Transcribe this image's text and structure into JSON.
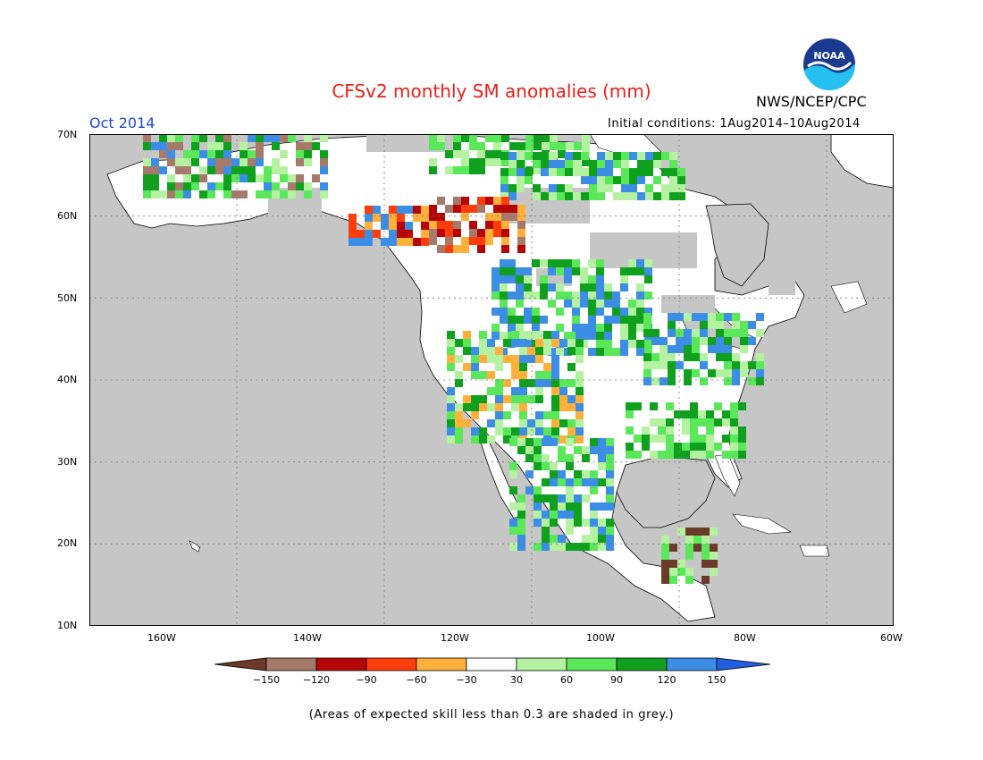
{
  "header": {
    "title": "CFSv2 monthly SM anomalies (mm)",
    "month": "Oct 2014",
    "initial_conditions": "Initial conditions: 1Aug2014–10Aug2014",
    "agency": "NWS/NCEP/CPC",
    "logo_text": "NOAA"
  },
  "map": {
    "lat_labels": [
      "70N",
      "60N",
      "50N",
      "40N",
      "30N",
      "20N",
      "10N"
    ],
    "lon_labels": [
      "160W",
      "140W",
      "120W",
      "100W",
      "80W",
      "60W"
    ],
    "colors": {
      "ocean": "#c6c6c6",
      "land": "#ffffff",
      "grey_skill": "#c6c6c6"
    }
  },
  "legend": {
    "tick_labels": [
      "−150",
      "−120",
      "−90",
      "−60",
      "−30",
      "30",
      "60",
      "90",
      "120",
      "150"
    ],
    "colors": [
      "#6b3a2a",
      "#a67a6a",
      "#b50505",
      "#ff3d0a",
      "#ffb03b",
      "#ffffff",
      "#b4f2a2",
      "#5ae85a",
      "#0fa01e",
      "#3c8de6",
      "#1f5fe0"
    ]
  },
  "footer": {
    "note": "(Areas of expected skill less than 0.3 are shaded in grey.)"
  }
}
